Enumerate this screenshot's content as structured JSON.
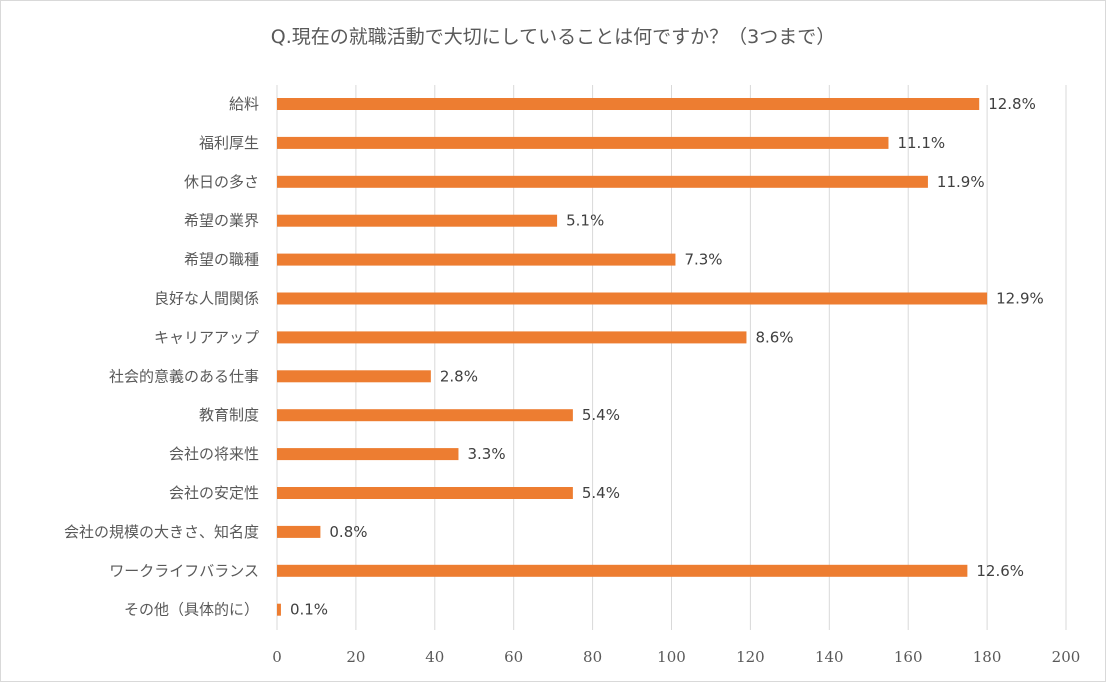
{
  "chart_data": {
    "type": "bar",
    "orientation": "horizontal",
    "title": "Q.現在の就職活動で大切にしていることは何ですか？（3つまで）",
    "categories": [
      "給料",
      "福利厚生",
      "休日の多さ",
      "希望の業界",
      "希望の職種",
      "良好な人間関係",
      "キャリアアップ",
      "社会的意義のある仕事",
      "教育制度",
      "会社の将来性",
      "会社の安定性",
      "会社の規模の大きさ、知名度",
      "ワークライフバランス",
      "その他（具体的に）"
    ],
    "values": [
      178,
      155,
      165,
      71,
      101,
      180,
      119,
      39,
      75,
      46,
      75,
      11,
      175,
      1
    ],
    "data_labels": [
      "12.8%",
      "11.1%",
      "11.9%",
      "5.1%",
      "7.3%",
      "12.9%",
      "8.6%",
      "2.8%",
      "5.4%",
      "3.3%",
      "5.4%",
      "0.8%",
      "12.6%",
      "0.1%"
    ],
    "xlim": [
      0,
      200
    ],
    "xticks": [
      0,
      20,
      40,
      60,
      80,
      100,
      120,
      140,
      160,
      180,
      200
    ],
    "grid": "vertical",
    "bar_color": "#ED7D31",
    "legend": "none"
  }
}
